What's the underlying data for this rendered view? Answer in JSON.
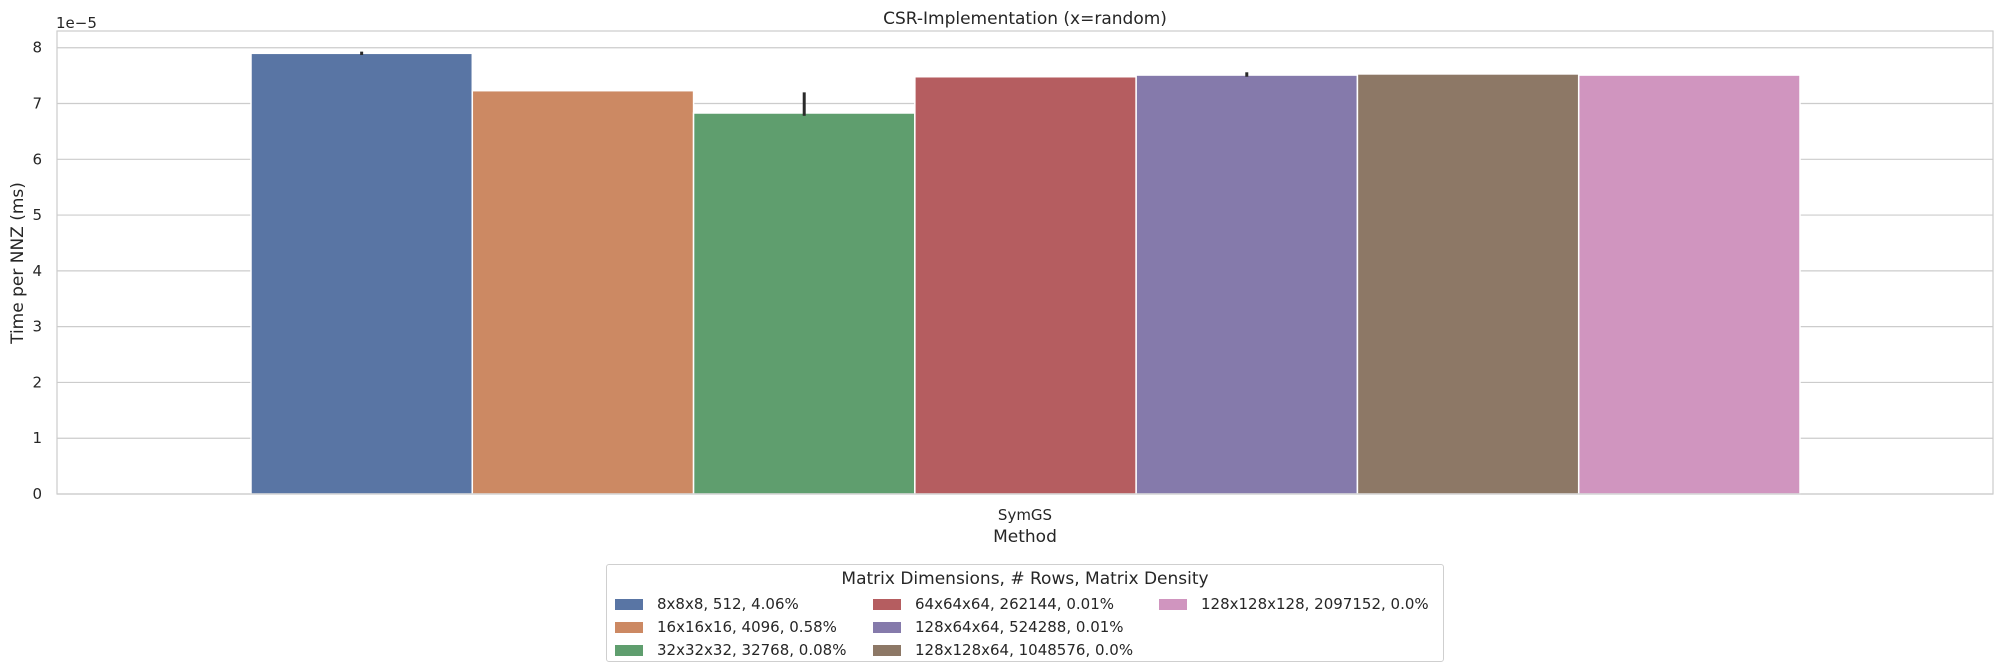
{
  "chart_data": {
    "type": "bar",
    "title": "CSR-Implementation (x=random)",
    "xlabel": "Method",
    "ylabel": "Time per NNZ (ms)",
    "offset_text": "1e−5",
    "scale": 1e-05,
    "categories": [
      "SymGS"
    ],
    "ylim": [
      0,
      8.3
    ],
    "yticks": [
      0,
      1,
      2,
      3,
      4,
      5,
      6,
      7,
      8
    ],
    "grid": true,
    "legend_position": "bottom-center",
    "legend_title": "Matrix Dimensions, # Rows, Matrix Density",
    "series": [
      {
        "name": "8x8x8, 512, 4.06%",
        "values": [
          7.9
        ],
        "error": [
          7.87,
          7.93
        ],
        "color": "#5975a4"
      },
      {
        "name": "16x16x16, 4096, 0.58%",
        "values": [
          7.23
        ],
        "error": null,
        "color": "#cc8963"
      },
      {
        "name": "32x32x32, 32768, 0.08%",
        "values": [
          6.83
        ],
        "error": [
          6.78,
          7.2
        ],
        "color": "#5f9e6e"
      },
      {
        "name": "64x64x64, 262144, 0.01%",
        "values": [
          7.48
        ],
        "error": null,
        "color": "#b55d60"
      },
      {
        "name": "128x64x64, 524288, 0.01%",
        "values": [
          7.51
        ],
        "error": [
          7.48,
          7.56
        ],
        "color": "#857aab"
      },
      {
        "name": "128x128x64, 1048576, 0.0%",
        "values": [
          7.53
        ],
        "error": null,
        "color": "#8d7866"
      },
      {
        "name": "128x128x128, 2097152, 0.0%",
        "values": [
          7.51
        ],
        "error": null,
        "color": "#d095bf"
      }
    ]
  }
}
